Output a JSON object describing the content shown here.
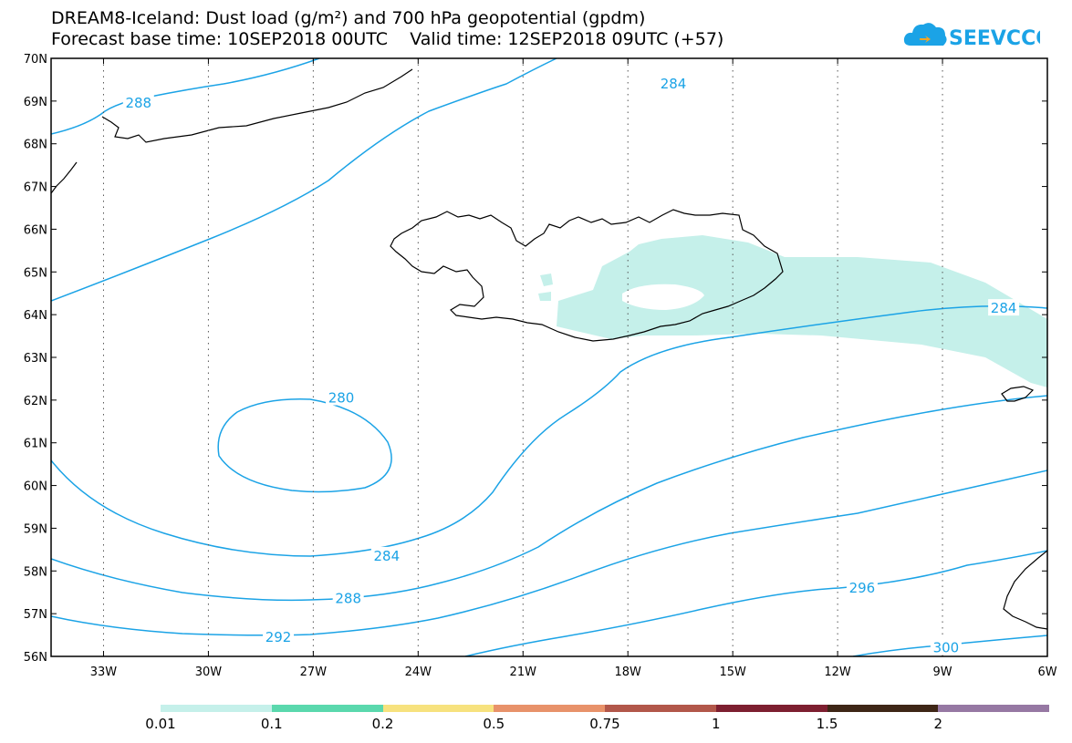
{
  "title": {
    "line1": "DREAM8-Iceland: Dust load (g/m²) and 700 hPa geopotential (gpdm)",
    "line2": "Forecast base time: 10SEP2018 00UTC    Valid time: 12SEP2018 09UTC (+57)"
  },
  "logo": {
    "text": "SEEVCCC",
    "color": "#1ba3e6",
    "accent": "#f5a623"
  },
  "map": {
    "lon_range": [
      -34.5,
      -6
    ],
    "lat_range": [
      56,
      70
    ],
    "lat_labels": [
      "70N",
      "69N",
      "68N",
      "67N",
      "66N",
      "65N",
      "64N",
      "63N",
      "62N",
      "61N",
      "60N",
      "59N",
      "58N",
      "57N",
      "56N"
    ],
    "lon_labels": [
      "33W",
      "30W",
      "27W",
      "24W",
      "21W",
      "18W",
      "15W",
      "12W",
      "9W",
      "6W"
    ],
    "gridlines": "dotted",
    "contour_color": "#1ba3e6",
    "dust_color": "#c5f0ea",
    "contour_labels": [
      {
        "text": "288",
        "lon": -32.0,
        "lat": 68.95
      },
      {
        "text": "284",
        "lon": -16.7,
        "lat": 69.4
      },
      {
        "text": "284",
        "lon": -7.25,
        "lat": 64.15
      },
      {
        "text": "280",
        "lon": -26.2,
        "lat": 62.05
      },
      {
        "text": "284",
        "lon": -24.9,
        "lat": 58.35
      },
      {
        "text": "288",
        "lon": -26.0,
        "lat": 57.35
      },
      {
        "text": "292",
        "lon": -28.0,
        "lat": 56.45
      },
      {
        "text": "296",
        "lon": -11.3,
        "lat": 57.6
      },
      {
        "text": "300",
        "lon": -8.9,
        "lat": 56.2
      }
    ]
  },
  "colorbar": {
    "colors": [
      "#c5f0ea",
      "#5ad8ad",
      "#f7e27e",
      "#e8926a",
      "#b2574a",
      "#7d1f30",
      "#3e2616",
      "#9678a3"
    ],
    "labels": [
      "0.01",
      "0.1",
      "0.2",
      "0.5",
      "0.75",
      "1",
      "1.5",
      "2"
    ]
  }
}
